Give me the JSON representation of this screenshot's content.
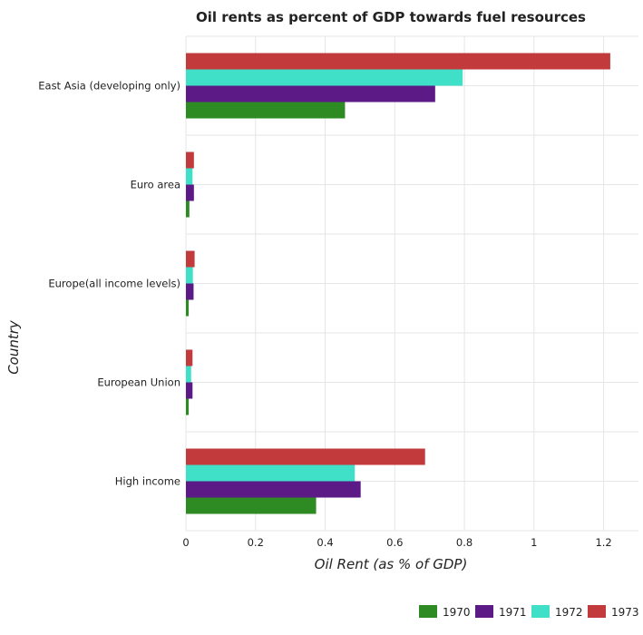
{
  "chart_data": {
    "type": "bar",
    "orientation": "horizontal",
    "title": "Oil rents as percent of GDP towards fuel resources",
    "xlabel": "Oil Rent (as % of GDP)",
    "ylabel": "Country",
    "categories": [
      "East Asia (developing only)",
      "Euro area",
      "Europe(all income levels)",
      "European Union",
      "High income"
    ],
    "series": [
      {
        "name": "1970",
        "color": "#2e8b24",
        "values": [
          0.457,
          0.01,
          0.008,
          0.008,
          0.374
        ]
      },
      {
        "name": "1971",
        "color": "#5b1a86",
        "values": [
          0.716,
          0.023,
          0.022,
          0.019,
          0.502
        ]
      },
      {
        "name": "1972",
        "color": "#3fe0c7",
        "values": [
          0.795,
          0.019,
          0.02,
          0.015,
          0.485
        ]
      },
      {
        "name": "1973",
        "color": "#c33a3d",
        "values": [
          1.219,
          0.023,
          0.025,
          0.019,
          0.687
        ]
      }
    ],
    "xlim": [
      0,
      1.3
    ],
    "xticks": [
      0,
      0.2,
      0.4,
      0.6,
      0.8,
      1,
      1.2
    ],
    "xtick_labels": [
      "0",
      "0.2",
      "0.4",
      "0.6",
      "0.8",
      "1",
      "1.2"
    ],
    "grid": true,
    "legend_position": "bottom-right"
  }
}
